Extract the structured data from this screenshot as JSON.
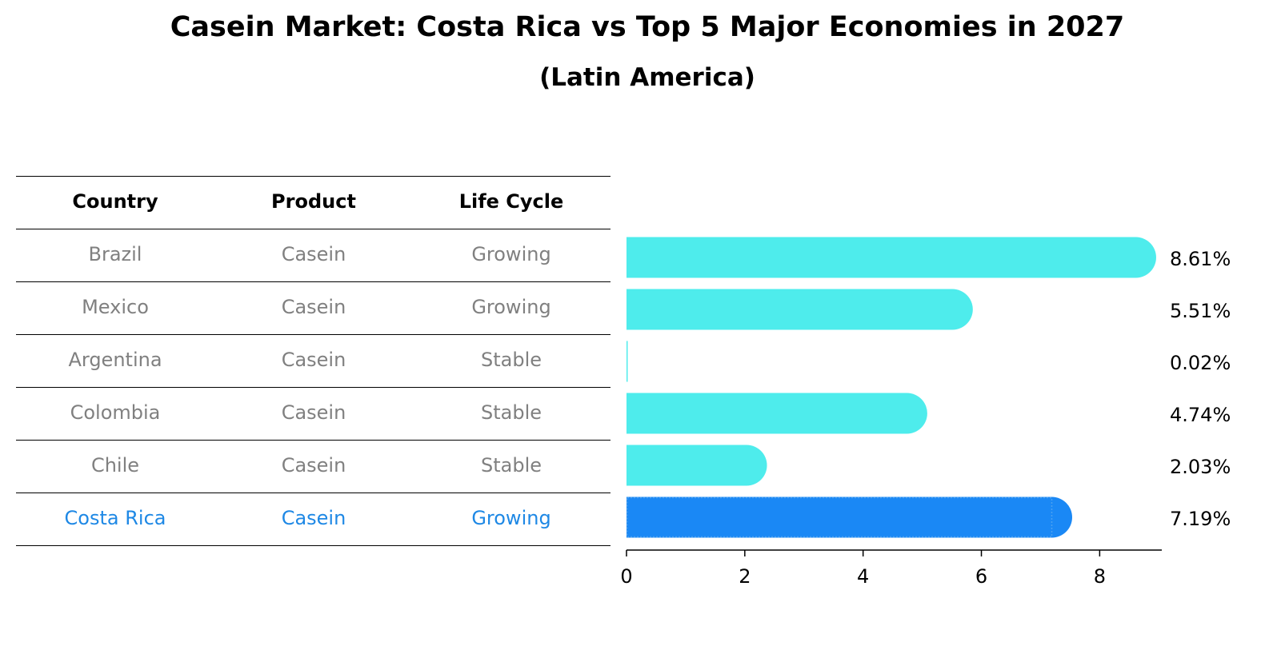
{
  "title": "Casein Market: Costa Rica vs Top 5 Major Economies in 2027",
  "subtitle": "(Latin America)",
  "table": {
    "headers": [
      "Country",
      "Product",
      "Life Cycle"
    ],
    "rows": [
      {
        "country": "Brazil",
        "product": "Casein",
        "life_cycle": "Growing",
        "highlight": false
      },
      {
        "country": "Mexico",
        "product": "Casein",
        "life_cycle": "Growing",
        "highlight": false
      },
      {
        "country": "Argentina",
        "product": "Casein",
        "life_cycle": "Stable",
        "highlight": false
      },
      {
        "country": "Colombia",
        "product": "Casein",
        "life_cycle": "Stable",
        "highlight": false
      },
      {
        "country": "Chile",
        "product": "Casein",
        "life_cycle": "Stable",
        "highlight": false
      },
      {
        "country": "Costa Rica",
        "product": "Casein",
        "life_cycle": "Growing",
        "highlight": true
      }
    ]
  },
  "colors": {
    "bar": "#4eecec",
    "highlight_bar": "#1a88f5",
    "highlight_text": "#1e88e5",
    "row_text": "#808080"
  },
  "chart_data": {
    "type": "bar",
    "orientation": "horizontal",
    "categories": [
      "Brazil",
      "Mexico",
      "Argentina",
      "Colombia",
      "Chile",
      "Costa Rica"
    ],
    "values": [
      8.61,
      5.51,
      0.02,
      4.74,
      2.03,
      7.19
    ],
    "value_labels": [
      "8.61%",
      "5.51%",
      "0.02%",
      "4.74%",
      "2.03%",
      "7.19%"
    ],
    "xlim": [
      0,
      9.05
    ],
    "xticks": [
      0,
      2,
      4,
      6,
      8
    ],
    "highlight_index": 5,
    "grid": false
  }
}
